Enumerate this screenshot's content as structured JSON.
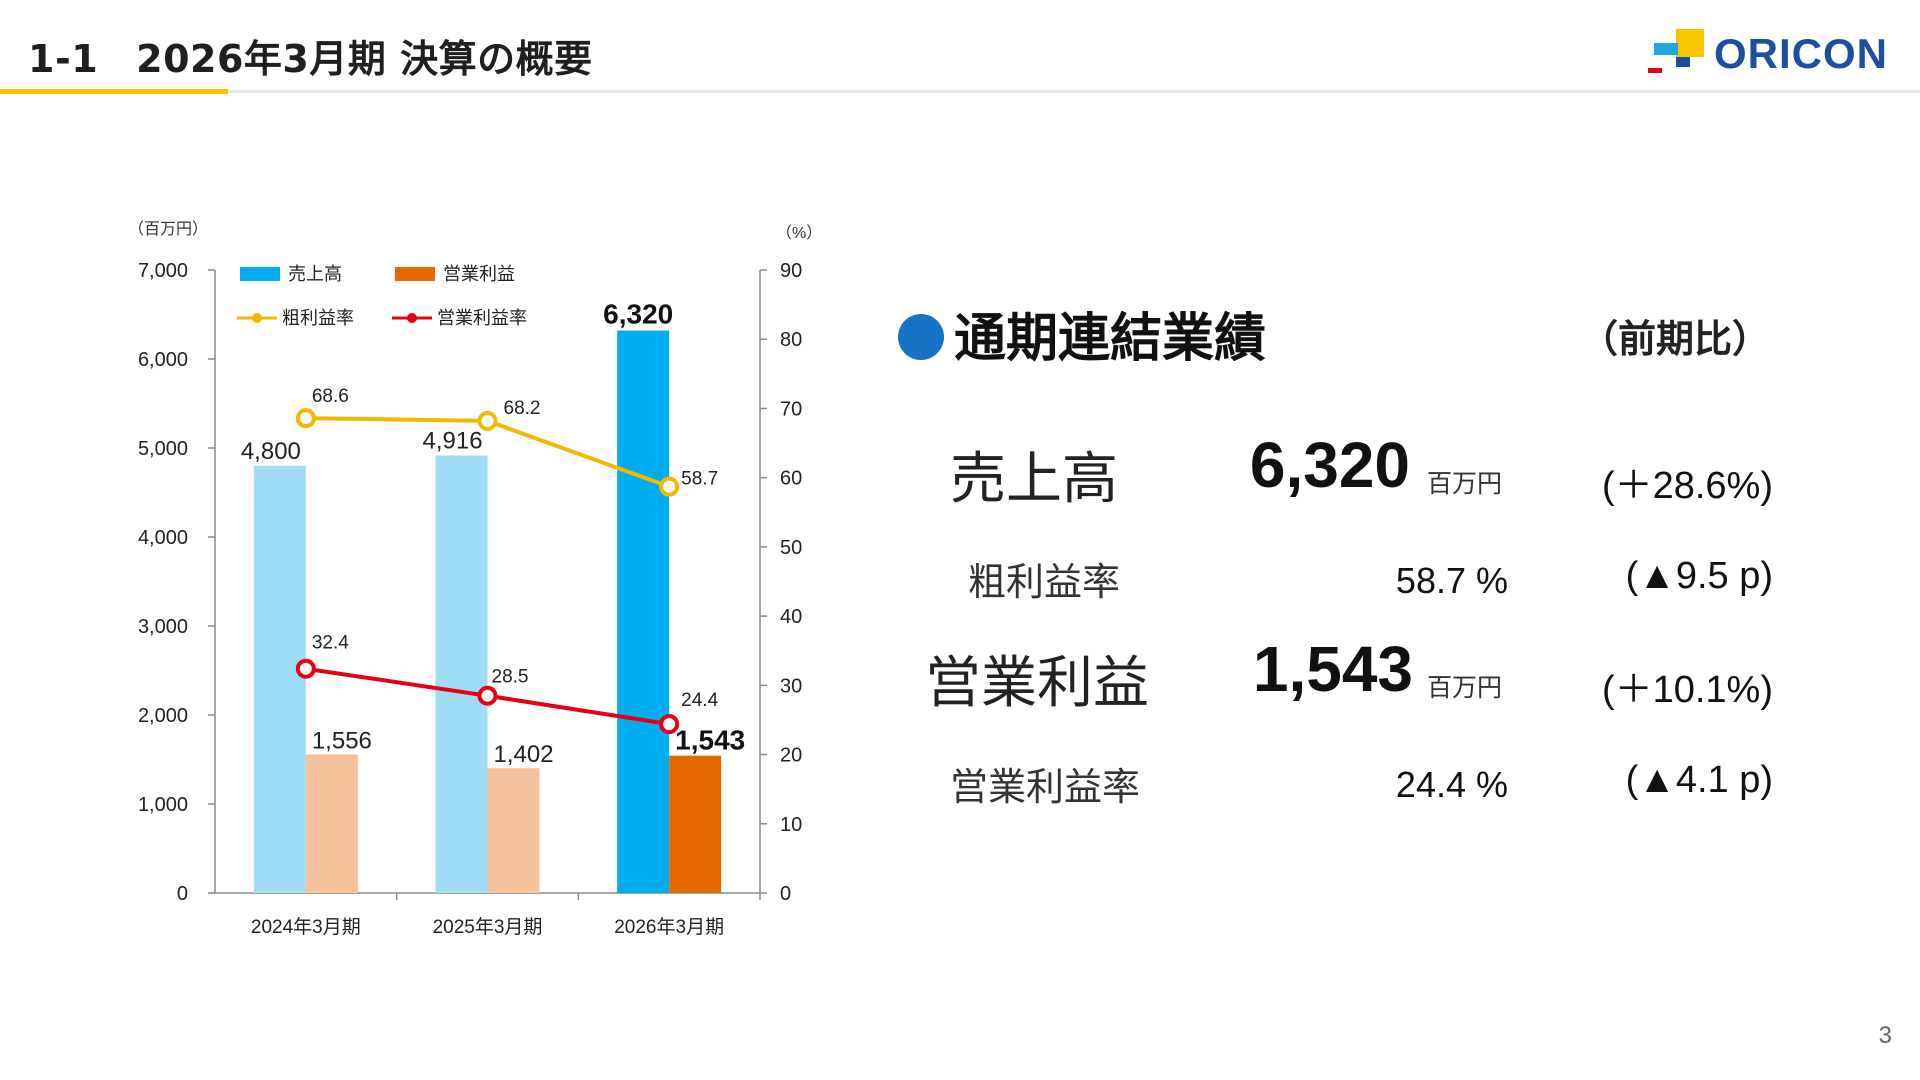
{
  "header": {
    "section_number": "1-1",
    "title": "2026年3月期 決算の概要"
  },
  "logo": {
    "text": "ORICON",
    "colors": [
      "#f7c600",
      "#1fa8e0",
      "#1c4fa0",
      "#e60012"
    ]
  },
  "page_number": "3",
  "summary": {
    "heading": "通期連結業績",
    "comparison": "（前期比）",
    "rows": [
      {
        "label": "売上高",
        "value": "6,320",
        "unit": "百万円",
        "change": "(＋28.6%)"
      },
      {
        "label": "粗利益率",
        "value": "58.7 %",
        "change": "(▲9.5 p)"
      },
      {
        "label": "営業利益",
        "value": "1,543",
        "unit": "百万円",
        "change": "(＋10.1%)"
      },
      {
        "label": "営業利益率",
        "value": "24.4 %",
        "change": "(▲4.1 p)"
      }
    ]
  },
  "chart_data": {
    "type": "bar",
    "categories": [
      "2024年3月期",
      "2025年3月期",
      "2026年3月期"
    ],
    "left_axis": {
      "unit": "（百万円）",
      "min": 0,
      "max": 7000,
      "step": 1000,
      "ticks": [
        "0",
        "1,000",
        "2,000",
        "3,000",
        "4,000",
        "5,000",
        "6,000",
        "7,000"
      ]
    },
    "right_axis": {
      "unit": "（%）",
      "min": 0,
      "max": 90,
      "step": 10,
      "ticks": [
        "0",
        "10",
        "20",
        "30",
        "40",
        "50",
        "60",
        "70",
        "80",
        "90"
      ]
    },
    "bar_series": [
      {
        "name": "売上高",
        "values": [
          4800,
          4916,
          6320
        ],
        "labels": [
          "4,800",
          "4,916",
          "6,320"
        ],
        "colors": [
          "#9fdcf5",
          "#9fdcf5",
          "#00aeef"
        ],
        "legend_color": "#00aeef"
      },
      {
        "name": "営業利益",
        "values": [
          1556,
          1402,
          1543
        ],
        "labels": [
          "1,556",
          "1,402",
          "1,543"
        ],
        "colors": [
          "#f6c29c",
          "#f6c29c",
          "#e66800"
        ],
        "legend_color": "#e66800"
      }
    ],
    "line_series": [
      {
        "name": "粗利益率",
        "values": [
          68.6,
          68.2,
          58.7
        ],
        "labels": [
          "68.6",
          "68.2",
          "58.7"
        ],
        "color": "#f5b800"
      },
      {
        "name": "営業利益率",
        "values": [
          32.4,
          28.5,
          24.4
        ],
        "labels": [
          "32.4",
          "28.5",
          "24.4"
        ],
        "color": "#e60012"
      }
    ],
    "legend": "top-left",
    "grid": false
  }
}
